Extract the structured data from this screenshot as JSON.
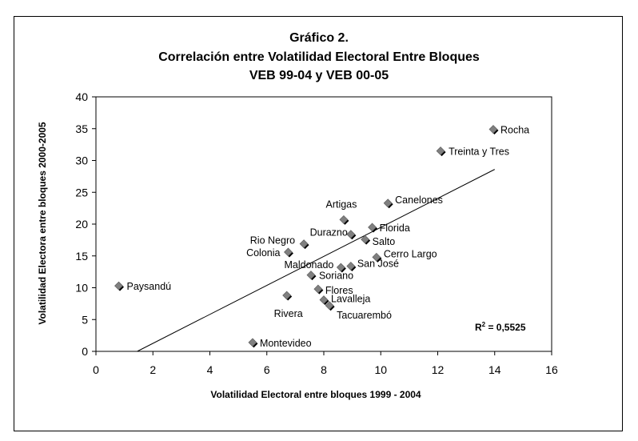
{
  "chart_data": {
    "type": "scatter",
    "title": [
      "Gráfico 2.",
      "Correlación entre Volatilidad Electoral Entre Bloques",
      "VEB 99-04 y VEB 00-05"
    ],
    "xlabel": "Volatilidad Electoral entre bloques 1999 - 2004",
    "ylabel": "Volatilidad Electora entre bloques 2000-2005",
    "xlim": [
      0,
      16
    ],
    "ylim": [
      0,
      40
    ],
    "xticks": [
      0,
      2,
      4,
      6,
      8,
      10,
      12,
      14,
      16
    ],
    "yticks": [
      0,
      5,
      10,
      15,
      20,
      25,
      30,
      35,
      40
    ],
    "grid": false,
    "legend": "none",
    "marker_color": "#808080",
    "points": [
      {
        "label": "Rocha",
        "x": 13.95,
        "y": 34.9
      },
      {
        "label": "Treinta y Tres",
        "x": 12.1,
        "y": 31.5
      },
      {
        "label": "Canelones",
        "x": 10.25,
        "y": 23.3
      },
      {
        "label": "Artigas",
        "x": 8.7,
        "y": 20.7
      },
      {
        "label": "Florida",
        "x": 9.7,
        "y": 19.5
      },
      {
        "label": "Durazno",
        "x": 8.95,
        "y": 18.4
      },
      {
        "label": "Salto",
        "x": 9.45,
        "y": 17.6
      },
      {
        "label": "Rio Negro",
        "x": 7.3,
        "y": 16.9
      },
      {
        "label": "Colonia",
        "x": 6.75,
        "y": 15.6
      },
      {
        "label": "Cerro Largo",
        "x": 9.85,
        "y": 14.8
      },
      {
        "label": "Maldonado",
        "x": 8.6,
        "y": 13.2
      },
      {
        "label": "San José",
        "x": 8.95,
        "y": 13.4
      },
      {
        "label": "Soriano",
        "x": 7.55,
        "y": 12.0
      },
      {
        "label": "Paysandú",
        "x": 0.8,
        "y": 10.3
      },
      {
        "label": "Flores",
        "x": 7.8,
        "y": 9.8
      },
      {
        "label": "Rivera",
        "x": 6.7,
        "y": 8.8
      },
      {
        "label": "Lavalleja",
        "x": 8.0,
        "y": 8.1
      },
      {
        "label": "Tacuarembó",
        "x": 8.2,
        "y": 7.2
      },
      {
        "label": "Montevideo",
        "x": 5.5,
        "y": 1.4
      }
    ],
    "trendline": {
      "x_start": 1.45,
      "y_start": 0,
      "x_end": 14.0,
      "y_end": 28.6
    },
    "annotation": {
      "r2_prefix": "R",
      "r2_sup": "2",
      "r2_value": " = 0,5525"
    }
  }
}
